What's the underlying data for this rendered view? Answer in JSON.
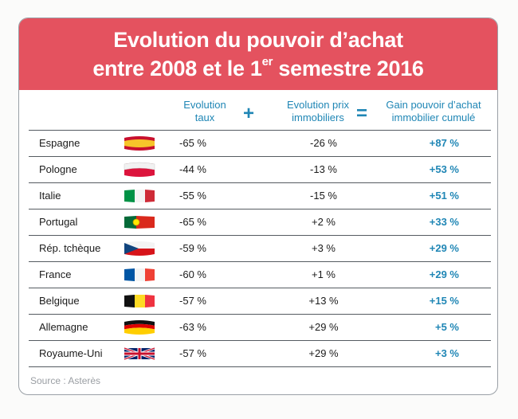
{
  "title": {
    "line1": "Evolution du pouvoir d’achat",
    "line2_pre": "entre 2008 et le 1",
    "line2_sup": "er",
    "line2_post": " semestre 2016"
  },
  "headers": {
    "col1_line1": "Evolution",
    "col1_line2": "taux",
    "op_plus": "+",
    "col2_line1": "Evolution prix",
    "col2_line2": "immobiliers",
    "op_equals": "=",
    "col3_line1": "Gain pouvoir d’achat",
    "col3_line2": "immobilier cumulé"
  },
  "rows": [
    {
      "country": "Espagne",
      "flag": "spain-flag-icon",
      "taux": "-65 %",
      "prix": "-26 %",
      "gain": "+87 %"
    },
    {
      "country": "Pologne",
      "flag": "poland-flag-icon",
      "taux": "-44 %",
      "prix": "-13 %",
      "gain": "+53 %"
    },
    {
      "country": "Italie",
      "flag": "italy-flag-icon",
      "taux": "-55 %",
      "prix": "-15 %",
      "gain": "+51 %"
    },
    {
      "country": "Portugal",
      "flag": "portugal-flag-icon",
      "taux": "-65 %",
      "prix": "+2 %",
      "gain": "+33 %"
    },
    {
      "country": "Rép. tchèque",
      "flag": "czech-flag-icon",
      "taux": "-59 %",
      "prix": "+3 %",
      "gain": "+29 %"
    },
    {
      "country": "France",
      "flag": "france-flag-icon",
      "taux": "-60 %",
      "prix": "+1 %",
      "gain": "+29 %"
    },
    {
      "country": "Belgique",
      "flag": "belgium-flag-icon",
      "taux": "-57 %",
      "prix": "+13 %",
      "gain": "+15 %"
    },
    {
      "country": "Allemagne",
      "flag": "germany-flag-icon",
      "taux": "-63 %",
      "prix": "+29 %",
      "gain": "+5 %"
    },
    {
      "country": "Royaume-Uni",
      "flag": "uk-flag-icon",
      "taux": "-57 %",
      "prix": "+29 %",
      "gain": "+3 %"
    }
  ],
  "source": "Source : Asterès",
  "colors": {
    "banner": "#e4525f",
    "accent": "#1f86b5"
  }
}
